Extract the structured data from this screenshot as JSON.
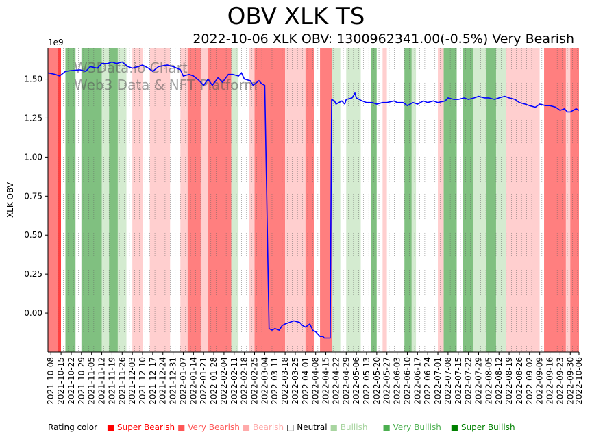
{
  "title": "OBV XLK TS",
  "subtitle": "2022-10-06 XLK OBV: 1300962341.00(-0.5%) Very Bearish",
  "watermark": [
    "W3Data.io Chart",
    "Web3 Data & NFT Platform"
  ],
  "legend": {
    "label": "Rating color",
    "items": [
      {
        "text": "■ Super Bearish",
        "color": "#ff0000"
      },
      {
        "text": "■ Very Bearish",
        "color": "#ff5555"
      },
      {
        "text": "■ Bearish",
        "color": "#ffaaaa"
      },
      {
        "text": "□ Neutral",
        "color": "#000000"
      },
      {
        "text": "■ Bullish",
        "color": "#a8d5a0"
      },
      {
        "text": "■ Very Bullish",
        "color": "#4caf50"
      },
      {
        "text": "■ Super Bullish",
        "color": "#008000"
      }
    ]
  },
  "chart_data": {
    "type": "line",
    "title": "OBV XLK TS",
    "ylabel": "XLK OBV",
    "y_multiplier_label": "1e9",
    "ylim": [
      -0.25,
      1.7
    ],
    "xlim": [
      "2021-10-06",
      "2022-10-06"
    ],
    "yticks": [
      0.0,
      0.25,
      0.5,
      0.75,
      1.0,
      1.25,
      1.5
    ],
    "ytick_labels": [
      "0.00",
      "0.25",
      "0.50",
      "0.75",
      "1.00",
      "1.25",
      "1.50"
    ],
    "xtick_labels": [
      "2021-10-08",
      "2021-10-15",
      "2021-10-22",
      "2021-10-29",
      "2021-11-05",
      "2021-11-12",
      "2021-11-19",
      "2021-11-26",
      "2021-12-03",
      "2021-12-10",
      "2021-12-17",
      "2021-12-24",
      "2021-12-31",
      "2022-01-07",
      "2022-01-14",
      "2022-01-21",
      "2022-01-28",
      "2022-02-04",
      "2022-02-11",
      "2022-02-18",
      "2022-02-25",
      "2022-03-04",
      "2022-03-11",
      "2022-03-18",
      "2022-03-25",
      "2022-04-01",
      "2022-04-08",
      "2022-04-15",
      "2022-04-22",
      "2022-04-29",
      "2022-05-06",
      "2022-05-13",
      "2022-05-20",
      "2022-05-27",
      "2022-06-03",
      "2022-06-10",
      "2022-06-17",
      "2022-06-24",
      "2022-07-01",
      "2022-07-08",
      "2022-07-15",
      "2022-07-22",
      "2022-07-29",
      "2022-08-05",
      "2022-08-12",
      "2022-08-19",
      "2022-08-26",
      "2022-09-02",
      "2022-09-09",
      "2022-09-16",
      "2022-09-23",
      "2022-09-30",
      "2022-10-06"
    ],
    "series": [
      {
        "color": "#0000ff",
        "points": [
          [
            "2021-10-06",
            1.54
          ],
          [
            "2021-10-11",
            1.53
          ],
          [
            "2021-10-14",
            1.52
          ],
          [
            "2021-10-18",
            1.55
          ],
          [
            "2021-10-22",
            1.555
          ],
          [
            "2021-10-28",
            1.56
          ],
          [
            "2021-11-01",
            1.55
          ],
          [
            "2021-11-04",
            1.58
          ],
          [
            "2021-11-09",
            1.57
          ],
          [
            "2021-11-12",
            1.6
          ],
          [
            "2021-11-16",
            1.6
          ],
          [
            "2021-11-19",
            1.61
          ],
          [
            "2021-11-22",
            1.6
          ],
          [
            "2021-11-26",
            1.61
          ],
          [
            "2021-11-30",
            1.58
          ],
          [
            "2021-12-03",
            1.57
          ],
          [
            "2021-12-07",
            1.58
          ],
          [
            "2021-12-10",
            1.59
          ],
          [
            "2021-12-14",
            1.57
          ],
          [
            "2021-12-17",
            1.55
          ],
          [
            "2021-12-21",
            1.58
          ],
          [
            "2021-12-27",
            1.59
          ],
          [
            "2021-12-31",
            1.58
          ],
          [
            "2022-01-05",
            1.56
          ],
          [
            "2022-01-07",
            1.52
          ],
          [
            "2022-01-11",
            1.53
          ],
          [
            "2022-01-14",
            1.52
          ],
          [
            "2022-01-18",
            1.49
          ],
          [
            "2022-01-21",
            1.46
          ],
          [
            "2022-01-24",
            1.5
          ],
          [
            "2022-01-27",
            1.46
          ],
          [
            "2022-01-31",
            1.51
          ],
          [
            "2022-02-03",
            1.48
          ],
          [
            "2022-02-07",
            1.53
          ],
          [
            "2022-02-10",
            1.53
          ],
          [
            "2022-02-14",
            1.52
          ],
          [
            "2022-02-16",
            1.54
          ],
          [
            "2022-02-18",
            1.5
          ],
          [
            "2022-02-22",
            1.49
          ],
          [
            "2022-02-24",
            1.46
          ],
          [
            "2022-02-28",
            1.49
          ],
          [
            "2022-03-02",
            1.47
          ],
          [
            "2022-03-04",
            1.46
          ],
          [
            "2022-03-07",
            -0.1
          ],
          [
            "2022-03-09",
            -0.11
          ],
          [
            "2022-03-11",
            -0.1
          ],
          [
            "2022-03-14",
            -0.11
          ],
          [
            "2022-03-16",
            -0.08
          ],
          [
            "2022-03-18",
            -0.07
          ],
          [
            "2022-03-21",
            -0.06
          ],
          [
            "2022-03-24",
            -0.05
          ],
          [
            "2022-03-28",
            -0.06
          ],
          [
            "2022-03-30",
            -0.08
          ],
          [
            "2022-04-01",
            -0.09
          ],
          [
            "2022-04-04",
            -0.07
          ],
          [
            "2022-04-06",
            -0.11
          ],
          [
            "2022-04-08",
            -0.12
          ],
          [
            "2022-04-11",
            -0.15
          ],
          [
            "2022-04-13",
            -0.15
          ],
          [
            "2022-04-14",
            -0.16
          ],
          [
            "2022-04-18",
            -0.16
          ],
          [
            "2022-04-19",
            1.37
          ],
          [
            "2022-04-21",
            1.36
          ],
          [
            "2022-04-22",
            1.34
          ],
          [
            "2022-04-26",
            1.36
          ],
          [
            "2022-04-28",
            1.34
          ],
          [
            "2022-04-29",
            1.37
          ],
          [
            "2022-05-03",
            1.38
          ],
          [
            "2022-05-05",
            1.41
          ],
          [
            "2022-05-06",
            1.38
          ],
          [
            "2022-05-10",
            1.36
          ],
          [
            "2022-05-13",
            1.35
          ],
          [
            "2022-05-17",
            1.35
          ],
          [
            "2022-05-20",
            1.34
          ],
          [
            "2022-05-24",
            1.35
          ],
          [
            "2022-05-27",
            1.35
          ],
          [
            "2022-06-01",
            1.36
          ],
          [
            "2022-06-03",
            1.35
          ],
          [
            "2022-06-07",
            1.35
          ],
          [
            "2022-06-10",
            1.33
          ],
          [
            "2022-06-14",
            1.35
          ],
          [
            "2022-06-17",
            1.34
          ],
          [
            "2022-06-21",
            1.36
          ],
          [
            "2022-06-24",
            1.35
          ],
          [
            "2022-06-28",
            1.36
          ],
          [
            "2022-07-01",
            1.35
          ],
          [
            "2022-07-06",
            1.36
          ],
          [
            "2022-07-08",
            1.38
          ],
          [
            "2022-07-12",
            1.37
          ],
          [
            "2022-07-15",
            1.37
          ],
          [
            "2022-07-19",
            1.38
          ],
          [
            "2022-07-22",
            1.37
          ],
          [
            "2022-07-26",
            1.38
          ],
          [
            "2022-07-29",
            1.39
          ],
          [
            "2022-08-02",
            1.38
          ],
          [
            "2022-08-05",
            1.38
          ],
          [
            "2022-08-09",
            1.37
          ],
          [
            "2022-08-12",
            1.38
          ],
          [
            "2022-08-16",
            1.39
          ],
          [
            "2022-08-19",
            1.38
          ],
          [
            "2022-08-23",
            1.37
          ],
          [
            "2022-08-26",
            1.35
          ],
          [
            "2022-08-30",
            1.34
          ],
          [
            "2022-09-02",
            1.33
          ],
          [
            "2022-09-06",
            1.32
          ],
          [
            "2022-09-09",
            1.34
          ],
          [
            "2022-09-13",
            1.33
          ],
          [
            "2022-09-16",
            1.33
          ],
          [
            "2022-09-20",
            1.32
          ],
          [
            "2022-09-23",
            1.3
          ],
          [
            "2022-09-26",
            1.31
          ],
          [
            "2022-09-28",
            1.29
          ],
          [
            "2022-09-30",
            1.29
          ],
          [
            "2022-10-04",
            1.31
          ],
          [
            "2022-10-06",
            1.3
          ]
        ]
      }
    ],
    "rating_bands": [
      [
        "2021-10-06",
        "2021-10-13",
        "very_bearish"
      ],
      [
        "2021-10-13",
        "2021-10-15",
        "super_bearish"
      ],
      [
        "2021-10-15",
        "2021-10-18",
        "neutral"
      ],
      [
        "2021-10-18",
        "2021-10-25",
        "very_bullish"
      ],
      [
        "2021-10-25",
        "2021-10-29",
        "neutral"
      ],
      [
        "2021-10-29",
        "2021-11-12",
        "very_bullish"
      ],
      [
        "2021-11-12",
        "2021-11-17",
        "bullish"
      ],
      [
        "2021-11-17",
        "2021-11-23",
        "very_bullish"
      ],
      [
        "2021-11-23",
        "2021-11-29",
        "bullish"
      ],
      [
        "2021-11-29",
        "2021-12-03",
        "neutral"
      ],
      [
        "2021-12-03",
        "2021-12-10",
        "bearish"
      ],
      [
        "2021-12-10",
        "2021-12-15",
        "neutral"
      ],
      [
        "2021-12-15",
        "2021-12-29",
        "bearish"
      ],
      [
        "2021-12-29",
        "2022-01-05",
        "neutral"
      ],
      [
        "2022-01-05",
        "2022-01-10",
        "bearish"
      ],
      [
        "2022-01-10",
        "2022-01-19",
        "very_bearish"
      ],
      [
        "2022-01-19",
        "2022-01-24",
        "bearish"
      ],
      [
        "2022-01-24",
        "2022-02-09",
        "very_bearish"
      ],
      [
        "2022-02-09",
        "2022-02-14",
        "bullish"
      ],
      [
        "2022-02-14",
        "2022-02-21",
        "neutral"
      ],
      [
        "2022-02-21",
        "2022-02-25",
        "bearish"
      ],
      [
        "2022-02-25",
        "2022-03-18",
        "very_bearish"
      ],
      [
        "2022-03-18",
        "2022-04-01",
        "bearish"
      ],
      [
        "2022-04-01",
        "2022-04-07",
        "very_bearish"
      ],
      [
        "2022-04-07",
        "2022-04-11",
        "neutral"
      ],
      [
        "2022-04-11",
        "2022-04-19",
        "very_bearish"
      ],
      [
        "2022-04-19",
        "2022-04-25",
        "bullish"
      ],
      [
        "2022-04-25",
        "2022-04-29",
        "neutral"
      ],
      [
        "2022-04-29",
        "2022-05-09",
        "bullish"
      ],
      [
        "2022-05-09",
        "2022-05-16",
        "neutral"
      ],
      [
        "2022-05-16",
        "2022-05-20",
        "very_bullish"
      ],
      [
        "2022-05-20",
        "2022-05-24",
        "neutral"
      ],
      [
        "2022-05-24",
        "2022-05-27",
        "bearish"
      ],
      [
        "2022-05-27",
        "2022-06-08",
        "neutral"
      ],
      [
        "2022-06-08",
        "2022-06-13",
        "very_bullish"
      ],
      [
        "2022-06-13",
        "2022-06-16",
        "bullish"
      ],
      [
        "2022-06-16",
        "2022-07-01",
        "neutral"
      ],
      [
        "2022-07-01",
        "2022-07-05",
        "bearish"
      ],
      [
        "2022-07-05",
        "2022-07-14",
        "very_bullish"
      ],
      [
        "2022-07-14",
        "2022-07-18",
        "neutral"
      ],
      [
        "2022-07-18",
        "2022-07-25",
        "very_bullish"
      ],
      [
        "2022-07-25",
        "2022-08-03",
        "bullish"
      ],
      [
        "2022-08-03",
        "2022-08-10",
        "very_bullish"
      ],
      [
        "2022-08-10",
        "2022-08-17",
        "bullish"
      ],
      [
        "2022-08-17",
        "2022-09-09",
        "bearish"
      ],
      [
        "2022-09-09",
        "2022-09-12",
        "neutral"
      ],
      [
        "2022-09-12",
        "2022-09-27",
        "very_bearish"
      ],
      [
        "2022-09-27",
        "2022-09-30",
        "bearish"
      ],
      [
        "2022-09-30",
        "2022-10-06",
        "very_bearish"
      ]
    ],
    "band_colors": {
      "super_bearish": "#ff4040",
      "very_bearish": "#ff7f7f",
      "bearish": "#ffcfcf",
      "neutral": "#ffffff",
      "bullish": "#d4ebd0",
      "very_bullish": "#80c080",
      "super_bullish": "#4caf50"
    }
  }
}
